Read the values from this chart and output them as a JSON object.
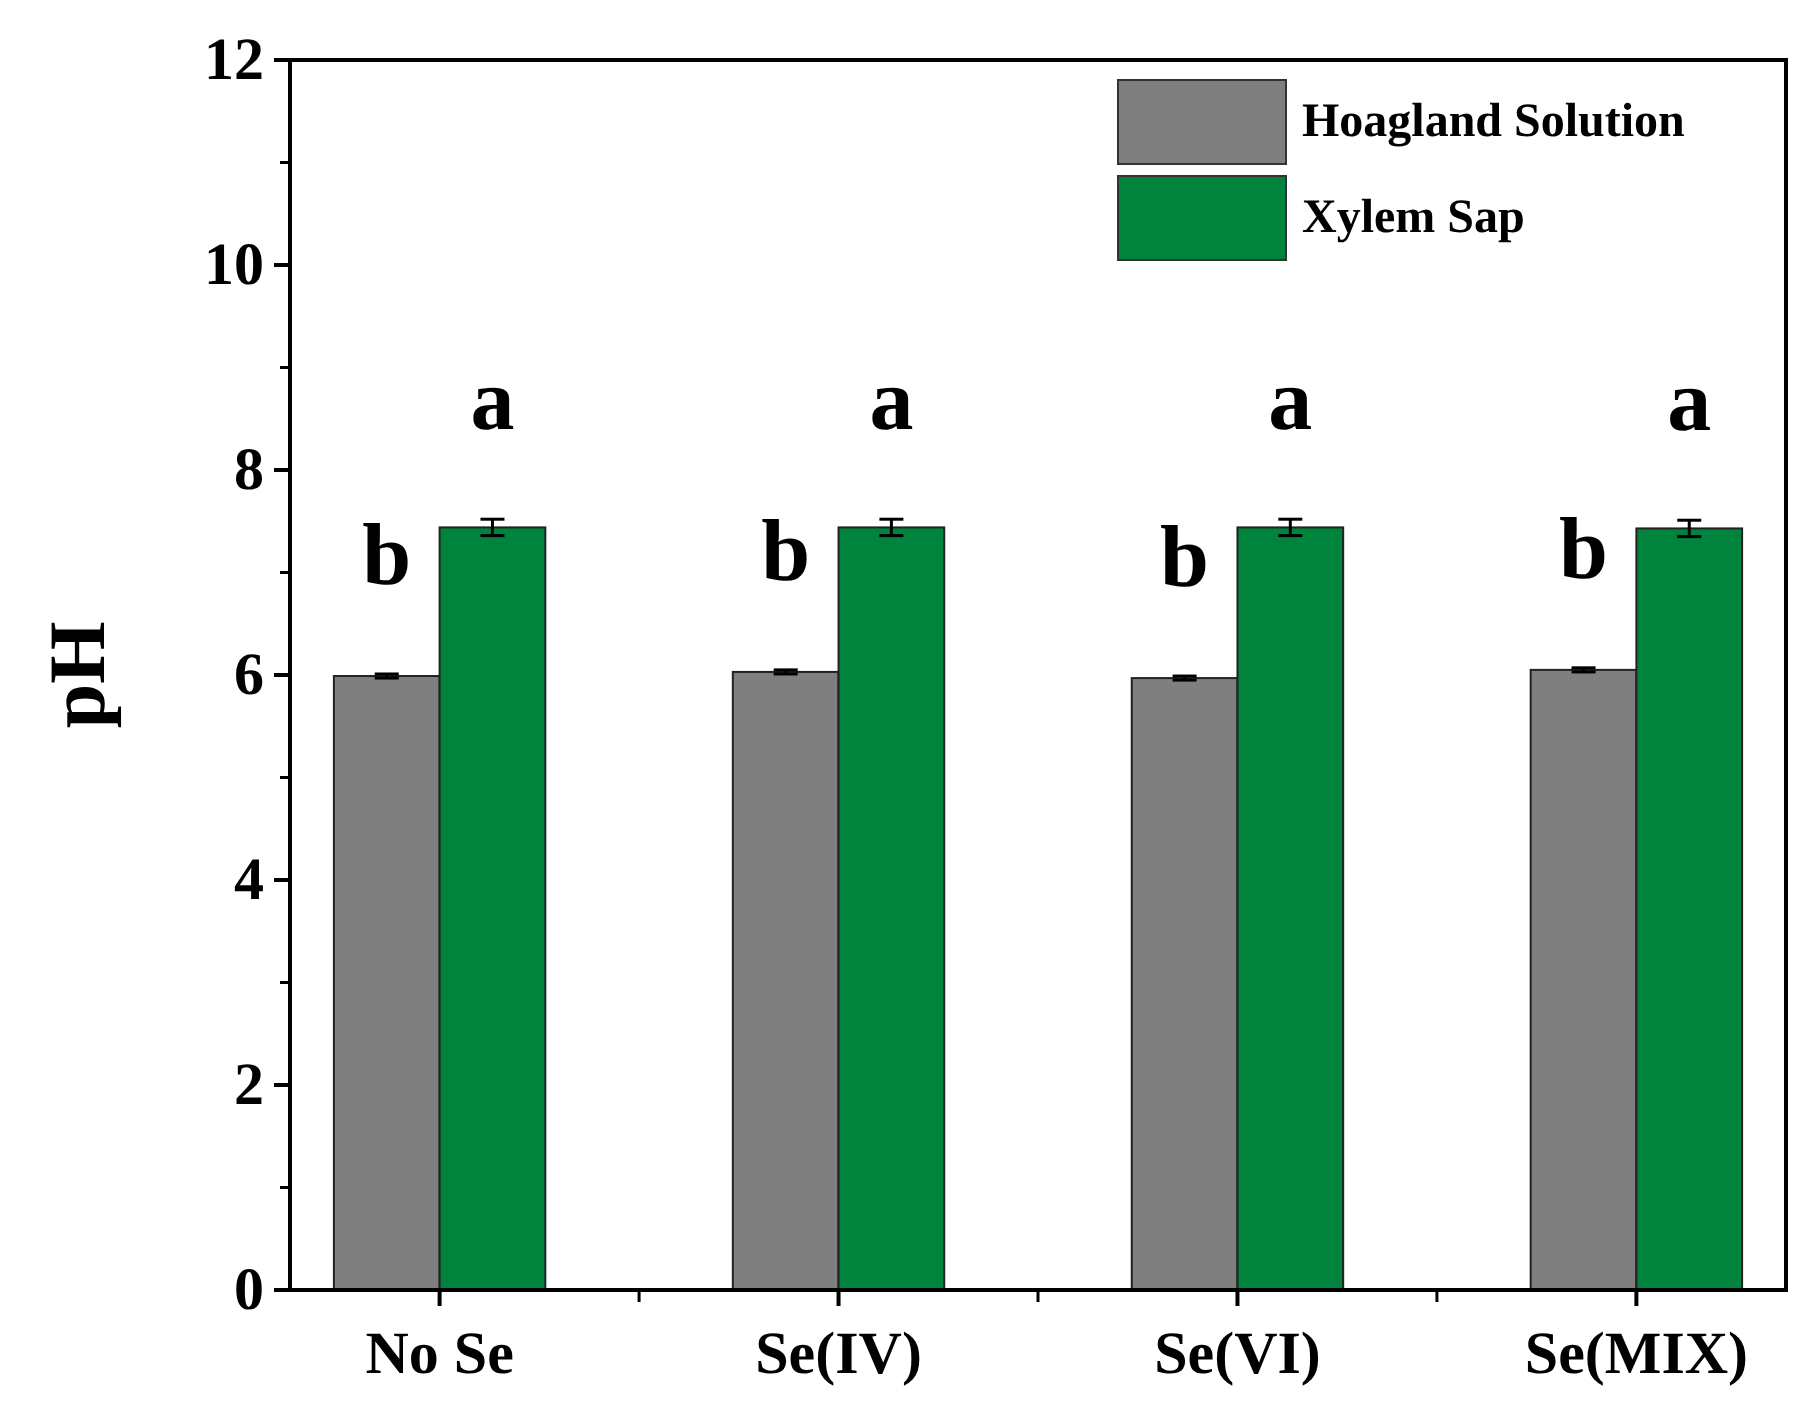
{
  "chart_data": {
    "type": "bar",
    "ylabel": "pH",
    "categories": [
      "No Se",
      "Se(IV)",
      "Se(VI)",
      "Se(MIX)"
    ],
    "series": [
      {
        "name": "Hoagland Solution",
        "color": "#7f7f7f",
        "values": [
          5.99,
          6.03,
          5.97,
          6.05
        ],
        "errors": [
          0.02,
          0.02,
          0.02,
          0.02
        ]
      },
      {
        "name": "Xylem Sap",
        "color": "#00843d",
        "values": [
          7.44,
          7.44,
          7.44,
          7.43
        ],
        "errors": [
          0.08,
          0.08,
          0.08,
          0.08
        ]
      }
    ],
    "ylim": [
      0,
      12
    ],
    "yticks": [
      0,
      2,
      4,
      6,
      8,
      10,
      12
    ],
    "legend": "top right",
    "annotations": [
      "b",
      "a",
      "b",
      "a",
      "b",
      "a",
      "b",
      "a"
    ]
  }
}
